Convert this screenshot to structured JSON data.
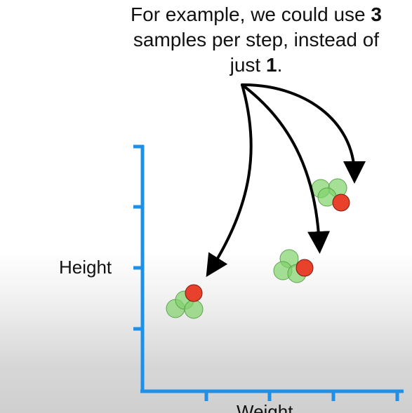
{
  "caption": {
    "line1_prefix": "For example, we could use ",
    "line1_number": "3",
    "line2": "samples per step, instead of",
    "line3_prefix": "just ",
    "line3_number": "1",
    "line3_suffix": "."
  },
  "axes": {
    "y_label": "Height",
    "x_label": "Weight",
    "color": "#1e90e8"
  },
  "colors": {
    "sample_green": "#7fd36a",
    "sample_red": "#e8412c",
    "arrow": "#000000"
  },
  "clusters": [
    {
      "name": "cluster-low",
      "green_samples": 3,
      "red_samples": 1
    },
    {
      "name": "cluster-mid",
      "green_samples": 3,
      "red_samples": 1
    },
    {
      "name": "cluster-high",
      "green_samples": 3,
      "red_samples": 1
    }
  ]
}
